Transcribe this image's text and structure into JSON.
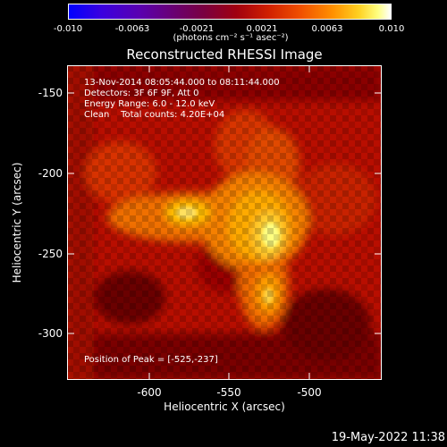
{
  "colorbar": {
    "ticks": [
      "-0.010",
      "-0.0063",
      "-0.0021",
      "0.0021",
      "0.0063",
      "0.010"
    ],
    "units_label": "(photons cm⁻² s⁻¹ asec⁻²)"
  },
  "chart_data": {
    "type": "heatmap",
    "title": "Reconstructed RHESSI Image",
    "xlabel": "Heliocentric X (arcsec)",
    "ylabel": "Heliocentric Y (arcsec)",
    "xlim": [
      -648,
      -452
    ],
    "ylim": [
      -325,
      -129
    ],
    "xticks": [
      "-600",
      "-550",
      "-500"
    ],
    "yticks": [
      "-150",
      "-200",
      "-250",
      "-300"
    ],
    "colorscale": "rhessi-3 (blue → purple → red → orange → yellow → white)",
    "color_range": [
      -0.01,
      0.01
    ],
    "peak": {
      "x": -525,
      "y": -237
    }
  },
  "annotations": {
    "time_range": "13-Nov-2014 08:05:44.000 to 08:11:44.000",
    "detectors": "Detectors: 3F 6F 9F, Att 0",
    "energy": "Energy Range: 6.0 - 12.0 keV",
    "clean": "Clean    Total counts: 4.20E+04",
    "peak_text": "Position of Peak = [-525,-237]"
  },
  "footer": {
    "date": "19-May-2022 11:38"
  }
}
